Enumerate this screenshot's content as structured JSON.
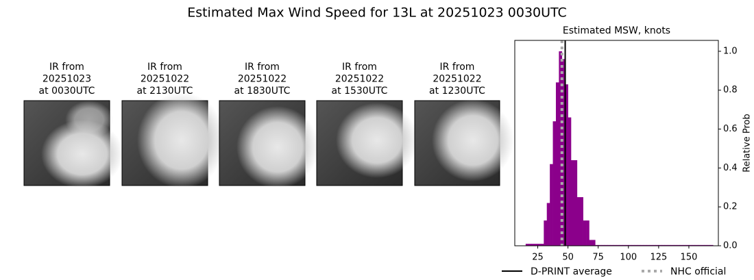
{
  "title": "Estimated Max Wind Speed for 13L at 20251023 0030UTC",
  "panels": [
    {
      "lines": [
        "IR from",
        "20251023",
        "at 0030UTC"
      ]
    },
    {
      "lines": [
        "IR from",
        "20251022",
        "at 2130UTC"
      ]
    },
    {
      "lines": [
        "IR from",
        "20251022",
        "at 1830UTC"
      ]
    },
    {
      "lines": [
        "IR from",
        "20251022",
        "at 1530UTC"
      ]
    },
    {
      "lines": [
        "IR from",
        "20251022",
        "at 1230UTC"
      ]
    }
  ],
  "chart_data": {
    "type": "histogram",
    "title": "Estimated MSW, knots",
    "y_label": "Relative Prob",
    "color": "#8b008b",
    "bins": [
      15,
      17.5,
      20,
      22.5,
      25,
      27.5,
      30,
      32.5,
      35,
      37.5,
      40,
      42.5,
      45,
      47.5,
      50,
      52.5,
      55,
      57.5,
      60,
      62.5,
      65,
      67.5,
      70,
      72.5,
      75,
      77.5,
      80,
      82.5,
      85,
      87.5,
      90,
      92.5,
      95,
      97.5,
      100,
      102.5,
      105,
      107.5,
      110,
      112.5,
      115,
      117.5,
      120,
      122.5,
      125,
      127.5,
      130,
      132.5,
      135,
      137.5,
      140,
      142.5,
      145,
      147.5,
      150,
      152.5,
      155,
      157.5,
      160,
      162.5,
      165,
      167.5,
      170
    ],
    "counts": [
      0.01,
      0.01,
      0.01,
      0.01,
      0.01,
      0.01,
      0.13,
      0.22,
      0.42,
      0.64,
      0.84,
      1.0,
      0.96,
      0.83,
      0.66,
      0.44,
      0.44,
      0.25,
      0.25,
      0.13,
      0.13,
      0.03,
      0.03,
      0.004,
      0.004,
      0.004,
      0.004,
      0.004,
      0.004,
      0.004,
      0.004,
      0.004,
      0.004,
      0.004,
      0.004,
      0.004,
      0.004,
      0.004,
      0.004,
      0.004,
      0.004,
      0.004,
      0.004,
      0.004,
      0.004,
      0.004,
      0.004,
      0.004,
      0.004,
      0.004,
      0.004,
      0.004,
      0.004,
      0.004,
      0.004,
      0.004,
      0.004,
      0.004,
      0.004,
      0.004,
      0.004,
      0.004
    ],
    "xlim": [
      6,
      174.4
    ],
    "xticks": [
      25,
      50,
      75,
      100,
      125,
      150
    ],
    "ylim": [
      0,
      1.056
    ],
    "yticks": [
      {
        "value": 0,
        "label": "0.0"
      },
      {
        "value": 0.2,
        "label": "0.2"
      },
      {
        "value": 0.4,
        "label": "0.4"
      },
      {
        "value": 0.6,
        "label": "0.6"
      },
      {
        "value": 0.8,
        "label": "0.8"
      },
      {
        "value": 1,
        "label": "1.0"
      }
    ],
    "lines": [
      {
        "name": "D-PRINT average",
        "value": 47.7,
        "color": "#000000",
        "style": "solid"
      },
      {
        "name": "NHC official",
        "value": 45,
        "color": "#aaaaaa",
        "style": "dotted"
      }
    ],
    "legend": "bottom"
  }
}
